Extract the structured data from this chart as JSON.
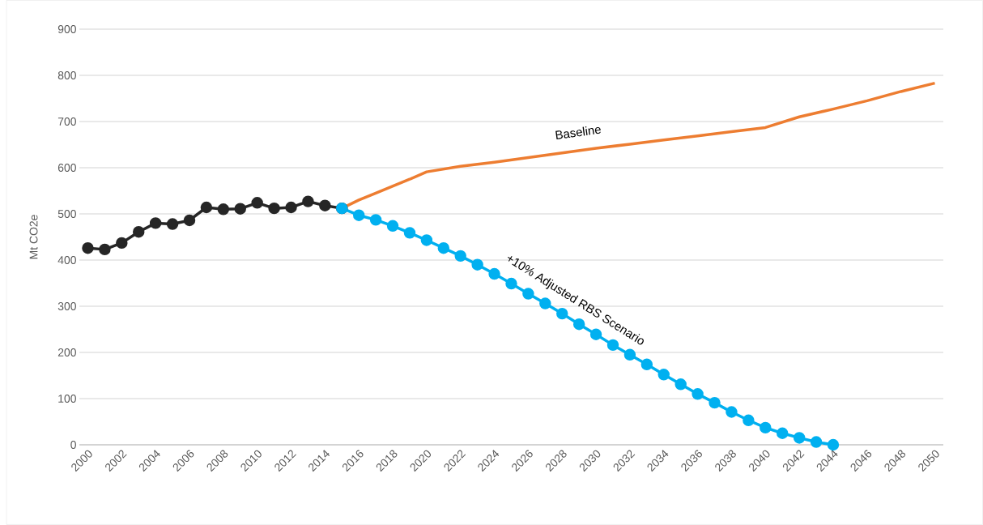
{
  "chart_data": {
    "type": "line",
    "ylabel": "Mt CO2e",
    "xlim": [
      1999.5,
      2050.5
    ],
    "xticks": [
      2000,
      2002,
      2004,
      2006,
      2008,
      2010,
      2012,
      2014,
      2016,
      2018,
      2020,
      2022,
      2024,
      2026,
      2028,
      2030,
      2032,
      2034,
      2036,
      2038,
      2040,
      2042,
      2044,
      2046,
      2048,
      2050
    ],
    "ylim": [
      0,
      900
    ],
    "yticks": [
      0,
      100,
      200,
      300,
      400,
      500,
      600,
      700,
      800,
      900
    ],
    "grid": "y",
    "series": [
      {
        "color": "#262626",
        "marker": "circle",
        "x": [
          2000,
          2001,
          2002,
          2003,
          2004,
          2005,
          2006,
          2007,
          2008,
          2009,
          2010,
          2011,
          2012,
          2013,
          2014,
          2015
        ],
        "values": [
          426,
          423,
          437,
          461,
          480,
          478,
          486,
          514,
          510,
          511,
          524,
          512,
          514,
          527,
          518,
          512
        ]
      },
      {
        "name": "Baseline",
        "color": "#ed7d31",
        "marker": "none",
        "x": [
          2015,
          2016,
          2017,
          2018,
          2019,
          2020,
          2022,
          2024,
          2026,
          2028,
          2030,
          2032,
          2034,
          2036,
          2038,
          2040,
          2042,
          2044,
          2046,
          2048,
          2050
        ],
        "values": [
          512,
          530,
          545,
          560,
          575,
          591,
          603,
          612,
          622,
          632,
          642,
          651,
          660,
          669,
          678,
          687,
          710,
          727,
          745,
          765,
          783
        ]
      },
      {
        "name": "+10% Adjusted RBS Scenario",
        "color": "#00b0f0",
        "marker": "circle",
        "x": [
          2015,
          2016,
          2017,
          2018,
          2019,
          2020,
          2021,
          2022,
          2023,
          2024,
          2025,
          2026,
          2027,
          2028,
          2029,
          2030,
          2031,
          2032,
          2033,
          2034,
          2035,
          2036,
          2037,
          2038,
          2039,
          2040,
          2041,
          2042,
          2043,
          2044
        ],
        "values": [
          512,
          497,
          487,
          474,
          459,
          443,
          426,
          409,
          390,
          370,
          349,
          327,
          306,
          284,
          261,
          239,
          216,
          195,
          174,
          152,
          131,
          110,
          91,
          71,
          53,
          37,
          25,
          15,
          6,
          0
        ]
      }
    ]
  }
}
